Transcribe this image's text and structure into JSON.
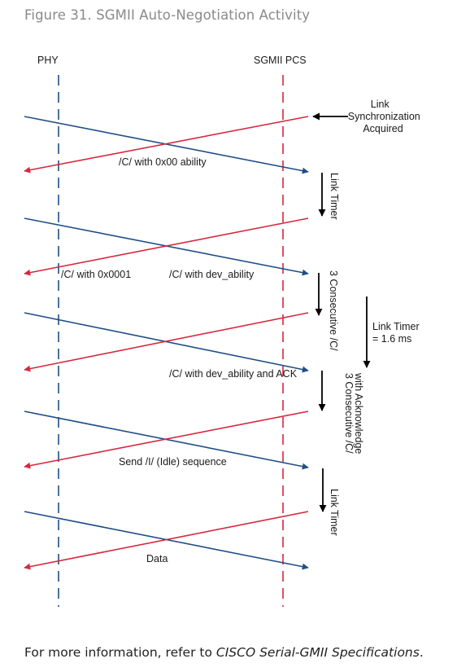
{
  "figure": {
    "title": "Figure 31. SGMII Auto-Negotiation Activity"
  },
  "diagram": {
    "phy_label": "PHY",
    "pcs_label": "SGMII PCS",
    "link_sync": [
      "Link",
      "Synchronization",
      "Acquired"
    ],
    "link_timer_1": "Link Timer",
    "consecutive_c": "3 Consecutive /C/",
    "link_timer_long": [
      "Link Timer",
      "= 1.6 ms"
    ],
    "consecutive_ack": [
      "3 Consecutive /C/",
      "with Acknowledge"
    ],
    "link_timer_2": "Link Timer",
    "msg_c_0x00": "/C/ with 0x00 ability",
    "msg_c_0x0001": "/C/ with 0x0001",
    "msg_dev_ability": "/C/ with dev_ability",
    "msg_dev_ability_ack": "/C/ with dev_ability and ACK",
    "msg_idle": "Send /I/ (Idle) sequence",
    "msg_data": "Data",
    "colors": {
      "phy_line": "#1f4e85",
      "pcs_line": "#d6283e"
    }
  },
  "footer": {
    "prefix": "For more information, refer to ",
    "spec": "CISCO Serial-GMII Specifications",
    "suffix": "."
  }
}
